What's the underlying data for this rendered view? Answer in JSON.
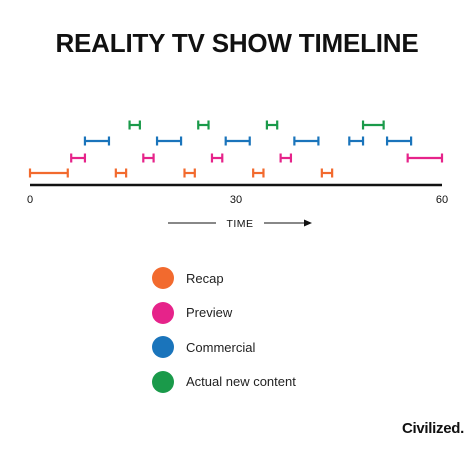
{
  "chart_data": {
    "type": "timeline",
    "title": "REALITY TV SHOW TIMELINE",
    "xlabel": "TIME",
    "xlim": [
      0,
      60
    ],
    "x_ticks": [
      "0",
      "30",
      "60"
    ],
    "series": [
      {
        "name": "Recap",
        "color": "#f26a2e",
        "intervals": [
          [
            0,
            5.5
          ],
          [
            12.5,
            14
          ],
          [
            22.5,
            24
          ],
          [
            32.5,
            34
          ],
          [
            42.5,
            44
          ]
        ]
      },
      {
        "name": "Preview",
        "color": "#e6238a",
        "intervals": [
          [
            6,
            8
          ],
          [
            16.5,
            18
          ],
          [
            26.5,
            28
          ],
          [
            36.5,
            38
          ],
          [
            55,
            60
          ]
        ]
      },
      {
        "name": "Commercial",
        "color": "#1a74bb",
        "intervals": [
          [
            8,
            11.5
          ],
          [
            18.5,
            22
          ],
          [
            28.5,
            32
          ],
          [
            38.5,
            42
          ],
          [
            46.5,
            48.5
          ],
          [
            52,
            55.5
          ]
        ]
      },
      {
        "name": "Actual new content",
        "color": "#1a9a4a",
        "intervals": [
          [
            14.5,
            16
          ],
          [
            24.5,
            26
          ],
          [
            34.5,
            36
          ],
          [
            48.5,
            51.5
          ]
        ]
      }
    ]
  },
  "brand": "Civilized."
}
